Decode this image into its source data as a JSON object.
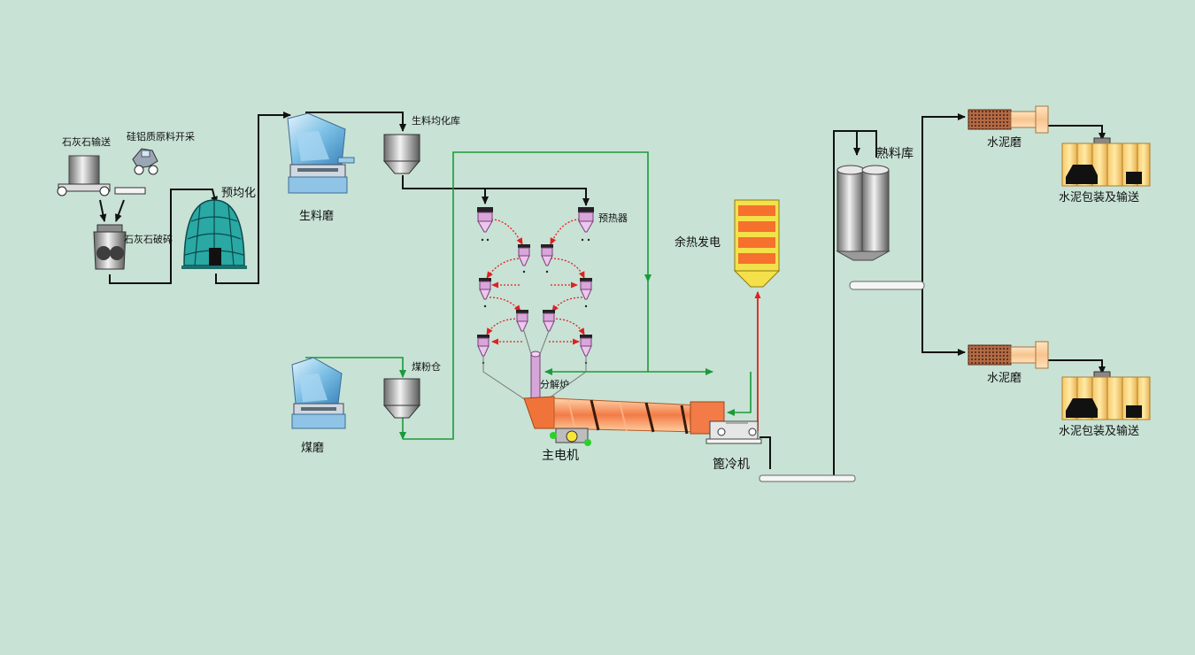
{
  "labels": {
    "limestone_transport": "石灰石输送",
    "silica_alumina_mining": "硅铝质原料开采",
    "limestone_crusher": "石灰石破碎",
    "pre_homogenization": "预均化",
    "raw_mill": "生料磨",
    "raw_homogenization_silo": "生料均化库",
    "preheater": "预热器",
    "coal_mill": "煤磨",
    "coal_powder_bin": "煤粉仓",
    "calciner": "分解炉",
    "main_motor": "主电机",
    "grate_cooler": "篦冷机",
    "waste_heat_power": "余热发电",
    "clinker_silo": "熟料库",
    "cement_mill_1": "水泥磨",
    "cement_mill_2": "水泥磨",
    "packing_1": "水泥包装及输送",
    "packing_2": "水泥包装及输送"
  },
  "colors": {
    "background": "#c8e2d5",
    "material_line": "#111111",
    "gas_line": "#1a9a3a",
    "hot_line": "#e02020",
    "kiln_orange": "#f48a4a",
    "preheater_purple": "#d8a6d8"
  }
}
